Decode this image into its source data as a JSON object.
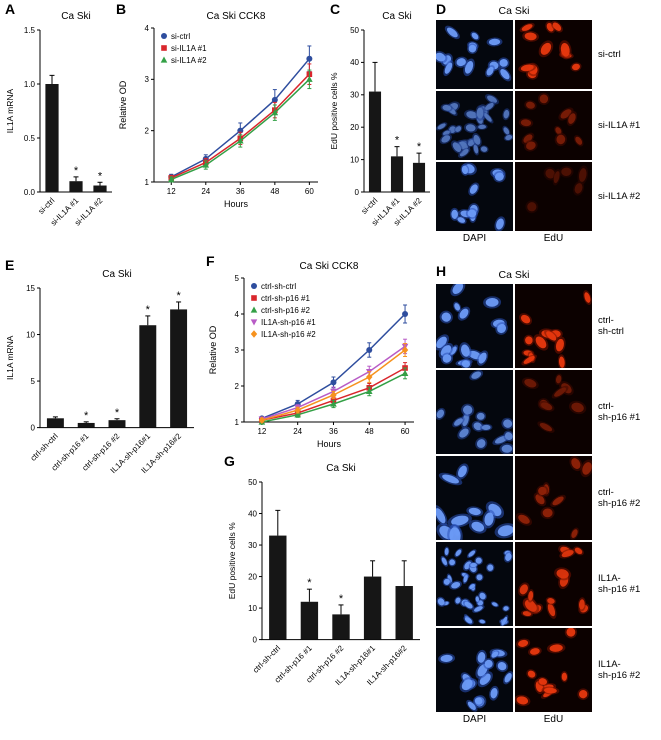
{
  "panels": {
    "a": {
      "letter": "A"
    },
    "b": {
      "letter": "B"
    },
    "c": {
      "letter": "C"
    },
    "d": {
      "letter": "D"
    },
    "e": {
      "letter": "E"
    },
    "f": {
      "letter": "F"
    },
    "g": {
      "letter": "G"
    },
    "h": {
      "letter": "H"
    }
  },
  "colors": {
    "bar": "#161616",
    "blue": "#2e4d9e",
    "red": "#d9262c",
    "green": "#33a046",
    "magenta": "#b85cc6",
    "orange": "#f6921e",
    "dapi": "#6d9bf7",
    "edu": "#e8380e"
  },
  "micro": {
    "d": {
      "title": "Ca Ski",
      "columns": [
        "DAPI",
        "EdU"
      ],
      "rows": [
        {
          "label": "si-ctrl",
          "dapi_n": 14,
          "dapi_a": 1,
          "dapi_s": 1,
          "edu_n": 12,
          "edu_a": 1
        },
        {
          "label": "si-IL1A #1",
          "dapi_n": 30,
          "dapi_a": 0.75,
          "dapi_s": 0.85,
          "edu_n": 10,
          "edu_a": 0.5
        },
        {
          "label": "si-IL1A #2",
          "dapi_n": 12,
          "dapi_a": 1,
          "dapi_s": 1,
          "edu_n": 6,
          "edu_a": 0.3
        }
      ]
    },
    "h": {
      "title": "Ca Ski",
      "columns": [
        "DAPI",
        "EdU"
      ],
      "rows": [
        {
          "label": "ctrl-\nsh-ctrl",
          "dapi_n": 16,
          "dapi_a": 1,
          "dapi_s": 1,
          "edu_n": 12,
          "edu_a": 1
        },
        {
          "label": "ctrl-\nsh-p16 #1",
          "dapi_n": 14,
          "dapi_a": 0.85,
          "dapi_s": 1,
          "edu_n": 8,
          "edu_a": 0.45
        },
        {
          "label": "ctrl-\nsh-p16 #2",
          "dapi_n": 12,
          "dapi_a": 1,
          "dapi_s": 1.3,
          "edu_n": 9,
          "edu_a": 0.6
        },
        {
          "label": "IL1A-\nsh-p16 #1",
          "dapi_n": 36,
          "dapi_a": 1,
          "dapi_s": 0.7,
          "edu_n": 15,
          "edu_a": 0.95
        },
        {
          "label": "IL1A-\nsh-p16 #2",
          "dapi_n": 16,
          "dapi_a": 1,
          "dapi_s": 1,
          "edu_n": 13,
          "edu_a": 1
        }
      ]
    }
  },
  "chart_data": [
    {
      "panel": "A",
      "type": "bar",
      "title": "Ca Ski",
      "ylabel": "IL1A mRNA",
      "xlabel": "",
      "categories": [
        "si-ctrl",
        "si-IL1A #1",
        "si-IL1A #2"
      ],
      "values": [
        1.0,
        0.1,
        0.06
      ],
      "errors": [
        0.08,
        0.04,
        0.03
      ],
      "sig": [
        "",
        "*",
        "*"
      ],
      "ylim": [
        0,
        1.5
      ],
      "yticks": [
        0,
        0.5,
        1.0,
        1.5
      ],
      "ytick_labels": [
        "0.0",
        "0.5",
        "1.0",
        "1.5"
      ]
    },
    {
      "panel": "B",
      "type": "line",
      "title": "Ca Ski CCK8",
      "xlabel": "Hours",
      "ylabel": "Relative OD",
      "x": [
        12,
        24,
        36,
        48,
        60
      ],
      "ylim": [
        1,
        4
      ],
      "yticks": [
        1,
        2,
        3,
        4
      ],
      "legend_pos": "top-left",
      "series": [
        {
          "name": "si-ctrl",
          "color_key": "blue",
          "marker": "circle",
          "values": [
            1.1,
            1.45,
            2.0,
            2.6,
            3.4
          ],
          "errors": [
            0.05,
            0.08,
            0.15,
            0.2,
            0.25
          ]
        },
        {
          "name": "si-IL1A #1",
          "color_key": "red",
          "marker": "square",
          "values": [
            1.08,
            1.38,
            1.85,
            2.4,
            3.1
          ],
          "errors": [
            0.05,
            0.08,
            0.12,
            0.15,
            0.2
          ]
        },
        {
          "name": "si-IL1A #2",
          "color_key": "green",
          "marker": "triangle",
          "values": [
            1.05,
            1.33,
            1.8,
            2.35,
            3.0
          ],
          "errors": [
            0.05,
            0.08,
            0.12,
            0.15,
            0.18
          ]
        }
      ]
    },
    {
      "panel": "C",
      "type": "bar",
      "title": "Ca Ski",
      "ylabel": "EdU positive cells %",
      "xlabel": "",
      "categories": [
        "si-ctrl",
        "si-IL1A #1",
        "si-IL1A #2"
      ],
      "values": [
        31,
        11,
        9
      ],
      "errors": [
        9,
        3,
        3
      ],
      "sig": [
        "",
        "*",
        "*"
      ],
      "ylim": [
        0,
        50
      ],
      "yticks": [
        0,
        10,
        20,
        30,
        40,
        50
      ],
      "ytick_labels": [
        "0",
        "10",
        "20",
        "30",
        "40",
        "50"
      ]
    },
    {
      "panel": "E",
      "type": "bar",
      "title": "Ca Ski",
      "ylabel": "IL1A mRNA",
      "xlabel": "",
      "categories": [
        "ctrl-sh-ctrl",
        "ctrl-sh-p16 #1",
        "ctrl-sh-p16 #2",
        "IL1A-sh-p16#1",
        "IL1A-sh-p16#2"
      ],
      "values": [
        1.0,
        0.5,
        0.8,
        11.0,
        12.7
      ],
      "errors": [
        0.15,
        0.12,
        0.15,
        1.0,
        0.8
      ],
      "sig": [
        "",
        "*",
        "*",
        "*",
        "*"
      ],
      "ylim": [
        0,
        15
      ],
      "yticks": [
        0,
        5,
        10,
        15
      ],
      "ytick_labels": [
        "0",
        "5",
        "10",
        "15"
      ]
    },
    {
      "panel": "F",
      "type": "line",
      "title": "Ca Ski CCK8",
      "xlabel": "Hours",
      "ylabel": "Relative OD",
      "x": [
        12,
        24,
        36,
        48,
        60
      ],
      "ylim": [
        1,
        5
      ],
      "yticks": [
        1,
        2,
        3,
        4,
        5
      ],
      "legend_pos": "top-left",
      "series": [
        {
          "name": "ctrl-sh-ctrl",
          "color_key": "blue",
          "marker": "circle",
          "values": [
            1.1,
            1.5,
            2.1,
            3.0,
            4.0
          ],
          "errors": [
            0.05,
            0.1,
            0.15,
            0.2,
            0.25
          ]
        },
        {
          "name": "ctrl-sh-p16 #1",
          "color_key": "red",
          "marker": "square",
          "values": [
            1.05,
            1.25,
            1.6,
            1.95,
            2.5
          ],
          "errors": [
            0.04,
            0.08,
            0.1,
            0.12,
            0.15
          ]
        },
        {
          "name": "ctrl-sh-p16 #2",
          "color_key": "green",
          "marker": "triangle",
          "values": [
            1.0,
            1.2,
            1.5,
            1.85,
            2.35
          ],
          "errors": [
            0.04,
            0.07,
            0.1,
            0.12,
            0.15
          ]
        },
        {
          "name": "IL1A-sh-p16 #1",
          "color_key": "magenta",
          "marker": "triangle-down",
          "values": [
            1.08,
            1.4,
            1.85,
            2.4,
            3.1
          ],
          "errors": [
            0.05,
            0.08,
            0.12,
            0.15,
            0.2
          ]
        },
        {
          "name": "IL1A-sh-p16 #2",
          "color_key": "orange",
          "marker": "diamond",
          "values": [
            1.05,
            1.33,
            1.75,
            2.25,
            3.0
          ],
          "errors": [
            0.05,
            0.08,
            0.1,
            0.15,
            0.18
          ]
        }
      ]
    },
    {
      "panel": "G",
      "type": "bar",
      "title": "Ca Ski",
      "ylabel": "EdU positive cells %",
      "xlabel": "",
      "categories": [
        "ctrl-sh-ctrl",
        "ctrl-sh-p16 #1",
        "ctrl-sh-p16 #2",
        "IL1A-sh-p16#1",
        "IL1A-sh-p16#2"
      ],
      "values": [
        33,
        12,
        8,
        20,
        17
      ],
      "errors": [
        8,
        4,
        3,
        5,
        8
      ],
      "sig": [
        "",
        "*",
        "*",
        "",
        ""
      ],
      "ylim": [
        0,
        50
      ],
      "yticks": [
        0,
        10,
        20,
        30,
        40,
        50
      ],
      "ytick_labels": [
        "0",
        "10",
        "20",
        "30",
        "40",
        "50"
      ]
    }
  ]
}
